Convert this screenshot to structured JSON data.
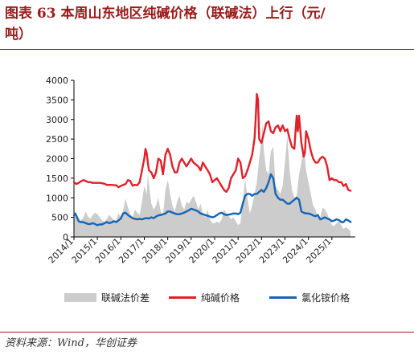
{
  "title": {
    "line1": "图表 63   本周山东地区纯碱价格（联碱法）上行（元/",
    "line2": "吨）"
  },
  "source": "资料来源：Wind，华创证券",
  "colors": {
    "spread": "#cccccc",
    "soda_ash": "#e0202a",
    "ammonium_chloride": "#1565b5",
    "title": "#9b1b1b"
  },
  "chart_data": {
    "type": "line",
    "ylim": [
      0,
      4000
    ],
    "yticks": [
      "0",
      "500",
      "1000",
      "1500",
      "2000",
      "2500",
      "3000",
      "3500",
      "4000"
    ],
    "xlim": [
      2014.0,
      2026.0
    ],
    "xticks": [
      "2014/1",
      "2015/1",
      "2016/1",
      "2017/1",
      "2018/1",
      "2019/1",
      "2020/1",
      "2021/1",
      "2022/1",
      "2023/1",
      "2024/1",
      "2025/1"
    ],
    "legend": [
      "联碱法价差",
      "纯碱价格",
      "氯化铵价格"
    ],
    "legend_position": "bottom",
    "grid": false,
    "series": [
      {
        "name": "联碱法价差",
        "kind": "area",
        "x": [
          2014.0,
          2014.1,
          2014.2,
          2014.3,
          2014.4,
          2014.5,
          2014.6,
          2014.7,
          2014.8,
          2014.9,
          2015.0,
          2015.1,
          2015.2,
          2015.3,
          2015.4,
          2015.5,
          2015.6,
          2015.7,
          2015.8,
          2015.9,
          2016.0,
          2016.1,
          2016.2,
          2016.3,
          2016.4,
          2016.5,
          2016.6,
          2016.7,
          2016.8,
          2016.9,
          2017.0,
          2017.1,
          2017.15,
          2017.2,
          2017.3,
          2017.4,
          2017.5,
          2017.6,
          2017.7,
          2017.8,
          2017.9,
          2018.0,
          2018.1,
          2018.2,
          2018.3,
          2018.4,
          2018.5,
          2018.6,
          2018.7,
          2018.8,
          2018.9,
          2019.0,
          2019.1,
          2019.2,
          2019.3,
          2019.4,
          2019.5,
          2019.6,
          2019.7,
          2019.8,
          2019.9,
          2020.0,
          2020.1,
          2020.2,
          2020.3,
          2020.4,
          2020.5,
          2020.6,
          2020.7,
          2020.8,
          2020.9,
          2021.0,
          2021.1,
          2021.2,
          2021.3,
          2021.4,
          2021.5,
          2021.6,
          2021.7,
          2021.8,
          2021.9,
          2022.0,
          2022.05,
          2022.1,
          2022.2,
          2022.3,
          2022.4,
          2022.5,
          2022.6,
          2022.7,
          2022.8,
          2022.9,
          2023.0,
          2023.1,
          2023.2,
          2023.3,
          2023.4,
          2023.5,
          2023.6,
          2023.7,
          2023.8,
          2023.9,
          2024.0,
          2024.1,
          2024.2,
          2024.3,
          2024.4,
          2024.5,
          2024.6,
          2024.7,
          2024.8,
          2024.9,
          2025.0,
          2025.1,
          2025.2,
          2025.3,
          2025.4,
          2025.5,
          2025.6,
          2025.7,
          2025.8
        ],
        "values": [
          600,
          550,
          480,
          420,
          500,
          650,
          520,
          470,
          560,
          620,
          580,
          500,
          420,
          380,
          460,
          560,
          500,
          430,
          420,
          600,
          520,
          680,
          980,
          760,
          580,
          500,
          700,
          620,
          560,
          900,
          1300,
          1100,
          1600,
          1350,
          850,
          700,
          800,
          1000,
          650,
          550,
          1200,
          1450,
          1100,
          800,
          650,
          900,
          1050,
          800,
          700,
          900,
          850,
          950,
          1050,
          900,
          700,
          850,
          600,
          500,
          700,
          450,
          350,
          350,
          400,
          350,
          450,
          700,
          600,
          550,
          450,
          500,
          400,
          300,
          350,
          900,
          1500,
          1000,
          600,
          800,
          1100,
          1400,
          2000,
          2500,
          2900,
          2200,
          1700,
          1600,
          2200,
          2300,
          1300,
          1200,
          1100,
          1300,
          1900,
          2600,
          1700,
          1200,
          1000,
          1050,
          1600,
          1900,
          2300,
          1700,
          1400,
          1100,
          800,
          700,
          500,
          500,
          750,
          700,
          600,
          450,
          300,
          280,
          350,
          400,
          300,
          200,
          250,
          200,
          150
        ]
      },
      {
        "name": "纯碱价格",
        "kind": "line",
        "x": [
          2014.0,
          2014.1,
          2014.2,
          2014.3,
          2014.4,
          2014.5,
          2014.6,
          2014.7,
          2014.8,
          2014.9,
          2015.0,
          2015.1,
          2015.2,
          2015.3,
          2015.4,
          2015.5,
          2015.6,
          2015.7,
          2015.8,
          2015.9,
          2016.0,
          2016.1,
          2016.2,
          2016.3,
          2016.4,
          2016.5,
          2016.6,
          2016.7,
          2016.8,
          2016.9,
          2017.0,
          2017.05,
          2017.1,
          2017.15,
          2017.2,
          2017.3,
          2017.4,
          2017.5,
          2017.6,
          2017.7,
          2017.8,
          2017.9,
          2018.0,
          2018.1,
          2018.2,
          2018.3,
          2018.4,
          2018.5,
          2018.6,
          2018.7,
          2018.8,
          2018.9,
          2019.0,
          2019.1,
          2019.2,
          2019.3,
          2019.4,
          2019.5,
          2019.6,
          2019.7,
          2019.8,
          2019.9,
          2020.0,
          2020.1,
          2020.2,
          2020.3,
          2020.4,
          2020.5,
          2020.6,
          2020.7,
          2020.8,
          2020.9,
          2021.0,
          2021.1,
          2021.2,
          2021.3,
          2021.4,
          2021.5,
          2021.6,
          2021.7,
          2021.75,
          2021.8,
          2021.85,
          2021.9,
          2022.0,
          2022.1,
          2022.2,
          2022.3,
          2022.4,
          2022.5,
          2022.6,
          2022.7,
          2022.8,
          2022.9,
          2023.0,
          2023.1,
          2023.2,
          2023.3,
          2023.4,
          2023.45,
          2023.5,
          2023.55,
          2023.6,
          2023.7,
          2023.8,
          2023.85,
          2023.9,
          2024.0,
          2024.1,
          2024.2,
          2024.3,
          2024.4,
          2024.5,
          2024.6,
          2024.7,
          2024.8,
          2024.9,
          2025.0,
          2025.1,
          2025.2,
          2025.3,
          2025.4,
          2025.5,
          2025.6,
          2025.7,
          2025.8
        ],
        "values": [
          1400,
          1350,
          1380,
          1420,
          1450,
          1430,
          1400,
          1400,
          1380,
          1380,
          1380,
          1380,
          1370,
          1360,
          1330,
          1330,
          1330,
          1320,
          1320,
          1270,
          1300,
          1330,
          1350,
          1450,
          1430,
          1310,
          1330,
          1320,
          1400,
          1700,
          2000,
          2250,
          2150,
          1900,
          1700,
          1650,
          1500,
          1650,
          2000,
          1950,
          1600,
          2100,
          2250,
          2100,
          1800,
          1650,
          1650,
          1900,
          2000,
          1900,
          1800,
          1900,
          2000,
          1900,
          1850,
          1800,
          1700,
          1900,
          1800,
          1700,
          1600,
          1400,
          1450,
          1500,
          1400,
          1300,
          1200,
          1150,
          1250,
          1500,
          1600,
          1700,
          2000,
          1900,
          1500,
          1550,
          1700,
          1900,
          2100,
          2500,
          3000,
          3650,
          3500,
          2500,
          2400,
          2650,
          2900,
          2950,
          2700,
          2650,
          2800,
          2850,
          2700,
          2850,
          2700,
          2750,
          2500,
          2300,
          2250,
          2700,
          3100,
          2700,
          3100,
          2400,
          2050,
          2150,
          2700,
          2500,
          2200,
          2000,
          1900,
          1900,
          2000,
          2050,
          2000,
          1800,
          1450,
          1500,
          1450,
          1450,
          1400,
          1400,
          1300,
          1350,
          1200,
          1180
        ]
      },
      {
        "name": "氯化铵价格",
        "kind": "line",
        "x": [
          2014.0,
          2014.05,
          2014.1,
          2014.2,
          2014.3,
          2014.4,
          2014.5,
          2014.6,
          2014.7,
          2014.8,
          2014.9,
          2015.0,
          2015.1,
          2015.2,
          2015.3,
          2015.4,
          2015.5,
          2015.6,
          2015.7,
          2015.8,
          2015.9,
          2016.0,
          2016.1,
          2016.2,
          2016.3,
          2016.4,
          2016.5,
          2016.6,
          2016.7,
          2016.8,
          2016.9,
          2017.0,
          2017.1,
          2017.2,
          2017.3,
          2017.4,
          2017.5,
          2017.6,
          2017.7,
          2017.8,
          2017.9,
          2018.0,
          2018.1,
          2018.2,
          2018.3,
          2018.4,
          2018.5,
          2018.6,
          2018.7,
          2018.8,
          2018.9,
          2019.0,
          2019.1,
          2019.2,
          2019.3,
          2019.4,
          2019.5,
          2019.6,
          2019.7,
          2019.8,
          2019.9,
          2020.0,
          2020.1,
          2020.2,
          2020.3,
          2020.4,
          2020.5,
          2020.6,
          2020.7,
          2020.8,
          2020.9,
          2021.0,
          2021.1,
          2021.2,
          2021.3,
          2021.4,
          2021.5,
          2021.6,
          2021.7,
          2021.8,
          2021.9,
          2022.0,
          2022.1,
          2022.2,
          2022.3,
          2022.4,
          2022.5,
          2022.6,
          2022.7,
          2022.8,
          2022.9,
          2023.0,
          2023.1,
          2023.2,
          2023.3,
          2023.4,
          2023.5,
          2023.6,
          2023.7,
          2023.8,
          2023.9,
          2024.0,
          2024.1,
          2024.2,
          2024.3,
          2024.4,
          2024.5,
          2024.6,
          2024.7,
          2024.8,
          2024.9,
          2025.0,
          2025.1,
          2025.2,
          2025.3,
          2025.4,
          2025.5,
          2025.6,
          2025.7,
          2025.8
        ],
        "values": [
          550,
          600,
          550,
          400,
          380,
          380,
          350,
          330,
          330,
          350,
          330,
          300,
          320,
          320,
          350,
          380,
          350,
          370,
          400,
          380,
          420,
          470,
          600,
          620,
          560,
          520,
          480,
          460,
          450,
          460,
          450,
          470,
          480,
          470,
          500,
          480,
          520,
          550,
          560,
          580,
          600,
          650,
          650,
          620,
          600,
          580,
          580,
          600,
          620,
          650,
          680,
          720,
          700,
          680,
          650,
          600,
          580,
          560,
          540,
          520,
          500,
          520,
          560,
          600,
          620,
          580,
          560,
          570,
          580,
          600,
          600,
          580,
          620,
          850,
          1050,
          1100,
          1100,
          1050,
          1100,
          1100,
          1150,
          1200,
          1150,
          1250,
          1400,
          1600,
          1500,
          1100,
          1000,
          950,
          950,
          900,
          850,
          850,
          900,
          950,
          1000,
          950,
          650,
          620,
          600,
          600,
          580,
          550,
          530,
          560,
          450,
          470,
          500,
          470,
          450,
          400,
          420,
          450,
          430,
          380,
          380,
          450,
          420,
          380
        ]
      }
    ]
  }
}
